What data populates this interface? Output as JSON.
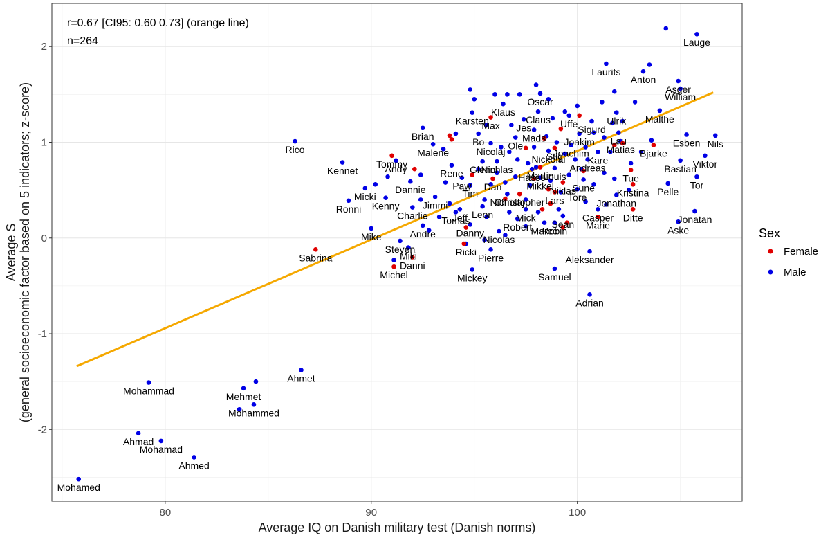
{
  "chart_data": {
    "type": "scatter",
    "xlabel": "Average IQ on Danish military test (Danish norms)",
    "ylabel_line1": "Average S",
    "ylabel_line2": "(general socioeconomic factor based on 5 indicators; z-score)",
    "xlim": [
      74.5,
      108.0
    ],
    "ylim": [
      -2.75,
      2.45
    ],
    "x_ticks": [
      80,
      90,
      100
    ],
    "y_ticks": [
      -2,
      -1,
      0,
      1,
      2
    ],
    "grid": true,
    "annotations": [
      "r=0.67 [CI95: 0.60 0.73] (orange line)",
      "n=264"
    ],
    "legend": {
      "title": "Sex",
      "placement": "right",
      "items": [
        {
          "label": "Female",
          "color": "#e00000"
        },
        {
          "label": "Male",
          "color": "#0000e6"
        }
      ]
    },
    "fit_line": {
      "color": "#f5a800",
      "x": [
        75.7,
        106.6
      ],
      "y": [
        -1.34,
        1.52
      ]
    },
    "series": [
      {
        "name": "Male",
        "color": "#0000e6",
        "points": [
          {
            "x": 75.8,
            "y": -2.52,
            "label": "Mohamed"
          },
          {
            "x": 78.7,
            "y": -2.04,
            "label": "Ahmad"
          },
          {
            "x": 79.8,
            "y": -2.12,
            "label": "Mohamad"
          },
          {
            "x": 81.4,
            "y": -2.29,
            "label": "Ahmed"
          },
          {
            "x": 79.2,
            "y": -1.51,
            "label": "Mohammad"
          },
          {
            "x": 83.8,
            "y": -1.57,
            "label": "Mehmet"
          },
          {
            "x": 84.4,
            "y": -1.5
          },
          {
            "x": 84.3,
            "y": -1.74,
            "label": "Mohammed"
          },
          {
            "x": 83.6,
            "y": -1.79
          },
          {
            "x": 86.6,
            "y": -1.38,
            "label": "Ahmet"
          },
          {
            "x": 86.3,
            "y": 1.01,
            "label": "Rico"
          },
          {
            "x": 88.6,
            "y": 0.79,
            "label": "Kennet"
          },
          {
            "x": 89.7,
            "y": 0.52,
            "label": "Micki"
          },
          {
            "x": 88.9,
            "y": 0.39,
            "label": "Ronni"
          },
          {
            "x": 90.2,
            "y": 0.56
          },
          {
            "x": 90.7,
            "y": 0.42,
            "label": "Kenny"
          },
          {
            "x": 90.0,
            "y": 0.1,
            "label": "Mike"
          },
          {
            "x": 91.2,
            "y": 0.81,
            "label": "Andy"
          },
          {
            "x": 90.8,
            "y": 0.64
          },
          {
            "x": 91.9,
            "y": 0.59,
            "label": "Dannie"
          },
          {
            "x": 92.5,
            "y": 1.15,
            "label": "Brian"
          },
          {
            "x": 93.0,
            "y": 0.98,
            "label": "Malene"
          },
          {
            "x": 92.0,
            "y": 0.32,
            "label": "Charlie"
          },
          {
            "x": 92.4,
            "y": 0.4
          },
          {
            "x": 93.1,
            "y": 0.43,
            "label": "Jimmi"
          },
          {
            "x": 92.5,
            "y": 0.13,
            "label": "Andre"
          },
          {
            "x": 91.4,
            "y": -0.03,
            "label": "Steven"
          },
          {
            "x": 91.8,
            "y": -0.1,
            "label": "Miki"
          },
          {
            "x": 91.1,
            "y": -0.23
          },
          {
            "x": 92.8,
            "y": 0.08
          },
          {
            "x": 94.1,
            "y": 1.09
          },
          {
            "x": 93.9,
            "y": 0.76,
            "label": "Rene"
          },
          {
            "x": 94.4,
            "y": 0.63,
            "label": "Paw"
          },
          {
            "x": 94.8,
            "y": 0.55,
            "label": "Tim"
          },
          {
            "x": 94.3,
            "y": 0.3,
            "label": "Jeff"
          },
          {
            "x": 94.8,
            "y": 0.14,
            "label": "Danny"
          },
          {
            "x": 94.1,
            "y": 0.27,
            "label": "Tomas"
          },
          {
            "x": 94.6,
            "y": -0.06,
            "label": "Ricki"
          },
          {
            "x": 95.4,
            "y": 0.8,
            "label": "Glenn"
          },
          {
            "x": 95.4,
            "y": 0.33,
            "label": "Leon"
          },
          {
            "x": 94.9,
            "y": 1.31,
            "label": "Karsten"
          },
          {
            "x": 95.2,
            "y": 1.09,
            "label": "Bo"
          },
          {
            "x": 95.8,
            "y": 0.99,
            "label": "Nicolaj"
          },
          {
            "x": 96.1,
            "y": 0.8,
            "label": "Nichlas"
          },
          {
            "x": 96.4,
            "y": 1.4,
            "label": "Klaus"
          },
          {
            "x": 95.5,
            "y": 0.4
          },
          {
            "x": 94.9,
            "y": -0.33,
            "label": "Mickey"
          },
          {
            "x": 95.8,
            "y": -0.12,
            "label": "Pierre"
          },
          {
            "x": 96.2,
            "y": 0.07,
            "label": "Nicolas"
          },
          {
            "x": 96.6,
            "y": 0.46,
            "label": "Nicholaj"
          },
          {
            "x": 97.1,
            "y": 0.2,
            "label": "Robert"
          },
          {
            "x": 97.0,
            "y": 1.05,
            "label": "Ole"
          },
          {
            "x": 97.4,
            "y": 1.24,
            "label": "Jes"
          },
          {
            "x": 98.2,
            "y": 1.51,
            "label": "Oscar"
          },
          {
            "x": 98.1,
            "y": 1.32,
            "label": "Claus"
          },
          {
            "x": 97.9,
            "y": 1.13,
            "label": "Mads"
          },
          {
            "x": 97.5,
            "y": 0.3,
            "label": "Mick"
          },
          {
            "x": 97.8,
            "y": 0.72,
            "label": "Hasse"
          },
          {
            "x": 98.2,
            "y": 0.63,
            "label": "Mikkel"
          },
          {
            "x": 98.9,
            "y": 0.73,
            "label": "Louis"
          },
          {
            "x": 98.6,
            "y": 0.91,
            "label": "Nickolai"
          },
          {
            "x": 98.4,
            "y": 0.16,
            "label": "Marco"
          },
          {
            "x": 98.9,
            "y": 0.16,
            "label": "Robin"
          },
          {
            "x": 98.9,
            "y": -0.32,
            "label": "Samuel"
          },
          {
            "x": 99.3,
            "y": 0.23,
            "label": "Sean"
          },
          {
            "x": 99.7,
            "y": 0.97,
            "label": "Joachim"
          },
          {
            "x": 99.6,
            "y": 1.28,
            "label": "Uffe"
          },
          {
            "x": 99.2,
            "y": 0.48
          },
          {
            "x": 100.0,
            "y": 0.51,
            "label": "Tore"
          },
          {
            "x": 100.3,
            "y": 0.61,
            "label": "Sune"
          },
          {
            "x": 100.5,
            "y": 0.82,
            "label": "Andreas"
          },
          {
            "x": 100.1,
            "y": 1.09,
            "label": "Joakim"
          },
          {
            "x": 100.7,
            "y": 1.22,
            "label": "Sigurd"
          },
          {
            "x": 101.0,
            "y": 0.9,
            "label": "Kare"
          },
          {
            "x": 101.4,
            "y": 1.82,
            "label": "Laurits"
          },
          {
            "x": 101.9,
            "y": 1.31,
            "label": "Ulrik"
          },
          {
            "x": 102.0,
            "y": 1.1,
            "label": "Lau"
          },
          {
            "x": 102.1,
            "y": 1.01,
            "label": "Matias"
          },
          {
            "x": 101.9,
            "y": 0.45,
            "label": "Jonathan"
          },
          {
            "x": 101.0,
            "y": 0.3,
            "label": "Casper"
          },
          {
            "x": 100.6,
            "y": -0.14,
            "label": "Aleksander"
          },
          {
            "x": 100.6,
            "y": -0.59,
            "label": "Adrian"
          },
          {
            "x": 102.8,
            "y": 1.42
          },
          {
            "x": 103.2,
            "y": 1.74,
            "label": "Anton"
          },
          {
            "x": 104.0,
            "y": 1.33,
            "label": "Malthe"
          },
          {
            "x": 104.3,
            "y": 2.19
          },
          {
            "x": 105.8,
            "y": 2.13,
            "label": "Lauge"
          },
          {
            "x": 104.9,
            "y": 1.64,
            "label": "Asger"
          },
          {
            "x": 105.0,
            "y": 1.56,
            "label": "William"
          },
          {
            "x": 105.3,
            "y": 1.08,
            "label": "Esben"
          },
          {
            "x": 106.7,
            "y": 1.07,
            "label": "Nils"
          },
          {
            "x": 105.0,
            "y": 0.81,
            "label": "Bastian"
          },
          {
            "x": 106.2,
            "y": 0.86,
            "label": "Viktor"
          },
          {
            "x": 105.8,
            "y": 0.64,
            "label": "Tor"
          },
          {
            "x": 104.4,
            "y": 0.57,
            "label": "Pelle"
          },
          {
            "x": 105.7,
            "y": 0.28,
            "label": "Jonatan"
          },
          {
            "x": 104.9,
            "y": 0.17,
            "label": "Aske"
          },
          {
            "x": 96.0,
            "y": 1.5
          },
          {
            "x": 96.6,
            "y": 1.5
          },
          {
            "x": 95.0,
            "y": 1.45
          },
          {
            "x": 97.2,
            "y": 1.5
          },
          {
            "x": 98.6,
            "y": 1.45
          },
          {
            "x": 99.4,
            "y": 1.32
          },
          {
            "x": 96.8,
            "y": 1.18
          },
          {
            "x": 96.3,
            "y": 0.95
          },
          {
            "x": 96.7,
            "y": 0.9
          },
          {
            "x": 97.9,
            "y": 0.95
          },
          {
            "x": 98.5,
            "y": 1.06
          },
          {
            "x": 99.0,
            "y": 1.0
          },
          {
            "x": 99.4,
            "y": 0.88
          },
          {
            "x": 99.9,
            "y": 0.82
          },
          {
            "x": 100.4,
            "y": 0.95
          },
          {
            "x": 100.8,
            "y": 1.1
          },
          {
            "x": 101.3,
            "y": 1.05
          },
          {
            "x": 101.6,
            "y": 0.9
          },
          {
            "x": 102.6,
            "y": 0.78
          },
          {
            "x": 103.1,
            "y": 0.9
          },
          {
            "x": 103.6,
            "y": 1.02
          },
          {
            "x": 102.2,
            "y": 1.22
          },
          {
            "x": 101.7,
            "y": 1.2
          },
          {
            "x": 97.1,
            "y": 0.82
          },
          {
            "x": 97.6,
            "y": 0.78
          },
          {
            "x": 98.0,
            "y": 0.74
          },
          {
            "x": 96.1,
            "y": 0.68
          },
          {
            "x": 95.2,
            "y": 0.72
          },
          {
            "x": 95.8,
            "y": 0.56
          },
          {
            "x": 96.5,
            "y": 0.58
          },
          {
            "x": 97.0,
            "y": 0.64
          },
          {
            "x": 97.7,
            "y": 0.55
          },
          {
            "x": 98.7,
            "y": 0.6
          },
          {
            "x": 99.6,
            "y": 0.66
          },
          {
            "x": 100.2,
            "y": 0.72
          },
          {
            "x": 101.3,
            "y": 0.68
          },
          {
            "x": 101.8,
            "y": 0.62
          },
          {
            "x": 100.8,
            "y": 0.56
          },
          {
            "x": 93.5,
            "y": 0.93
          },
          {
            "x": 92.4,
            "y": 0.66
          },
          {
            "x": 93.6,
            "y": 0.58
          },
          {
            "x": 93.3,
            "y": 0.22
          },
          {
            "x": 93.8,
            "y": 0.36
          },
          {
            "x": 95.6,
            "y": 0.22
          },
          {
            "x": 96.7,
            "y": 0.27
          },
          {
            "x": 97.5,
            "y": 0.4
          },
          {
            "x": 98.1,
            "y": 0.27
          },
          {
            "x": 99.1,
            "y": 0.3
          },
          {
            "x": 100.4,
            "y": 0.38
          },
          {
            "x": 101.4,
            "y": 0.35
          },
          {
            "x": 102.5,
            "y": 0.5
          },
          {
            "x": 96.5,
            "y": 0.03
          },
          {
            "x": 97.5,
            "y": 0.12
          },
          {
            "x": 95.5,
            "y": -0.02
          },
          {
            "x": 98.8,
            "y": 1.25
          },
          {
            "x": 95.6,
            "y": 1.18
          },
          {
            "x": 98.0,
            "y": 1.6
          },
          {
            "x": 94.8,
            "y": 1.55
          },
          {
            "x": 100.0,
            "y": 1.38
          },
          {
            "x": 101.2,
            "y": 1.42
          },
          {
            "x": 103.5,
            "y": 1.81
          },
          {
            "x": 101.8,
            "y": 1.53
          }
        ]
      },
      {
        "name": "Female",
        "color": "#e00000",
        "points": [
          {
            "x": 87.3,
            "y": -0.12,
            "label": "Sabrina"
          },
          {
            "x": 91.1,
            "y": -0.3,
            "label": "Michel"
          },
          {
            "x": 92.0,
            "y": -0.2,
            "label": "Danni"
          },
          {
            "x": 91.0,
            "y": 0.86,
            "label": "Tommy"
          },
          {
            "x": 93.8,
            "y": 1.07
          },
          {
            "x": 93.9,
            "y": 1.03
          },
          {
            "x": 95.8,
            "y": 1.26,
            "label": "Max"
          },
          {
            "x": 94.6,
            "y": 0.11
          },
          {
            "x": 94.5,
            "y": -0.06
          },
          {
            "x": 95.9,
            "y": 0.62,
            "label": "Dan"
          },
          {
            "x": 97.2,
            "y": 0.46,
            "label": "Christopher"
          },
          {
            "x": 97.5,
            "y": 0.94
          },
          {
            "x": 98.2,
            "y": 0.74,
            "label": "Martin"
          },
          {
            "x": 98.4,
            "y": 1.04
          },
          {
            "x": 98.9,
            "y": 0.94,
            "label": "Stig"
          },
          {
            "x": 98.9,
            "y": 0.48,
            "label": "Lars"
          },
          {
            "x": 98.6,
            "y": 0.51
          },
          {
            "x": 98.7,
            "y": 0.36
          },
          {
            "x": 98.3,
            "y": 0.3
          },
          {
            "x": 99.3,
            "y": 0.11
          },
          {
            "x": 99.2,
            "y": 1.14
          },
          {
            "x": 99.3,
            "y": 0.58,
            "label": "Niklas"
          },
          {
            "x": 100.3,
            "y": 0.7
          },
          {
            "x": 101.0,
            "y": 0.22,
            "label": "Marie"
          },
          {
            "x": 100.1,
            "y": 1.28
          },
          {
            "x": 102.2,
            "y": 0.99
          },
          {
            "x": 102.6,
            "y": 0.71,
            "label": "Tue"
          },
          {
            "x": 102.7,
            "y": 0.56,
            "label": "Kristina"
          },
          {
            "x": 102.7,
            "y": 0.3,
            "label": "Ditte"
          },
          {
            "x": 103.7,
            "y": 0.97,
            "label": "Bjarke"
          },
          {
            "x": 92.1,
            "y": 0.72
          },
          {
            "x": 96.5,
            "y": 0.41
          },
          {
            "x": 99.5,
            "y": 0.16
          },
          {
            "x": 101.8,
            "y": 0.97
          },
          {
            "x": 97.9,
            "y": 0.62
          },
          {
            "x": 94.9,
            "y": 0.66
          }
        ]
      }
    ]
  }
}
